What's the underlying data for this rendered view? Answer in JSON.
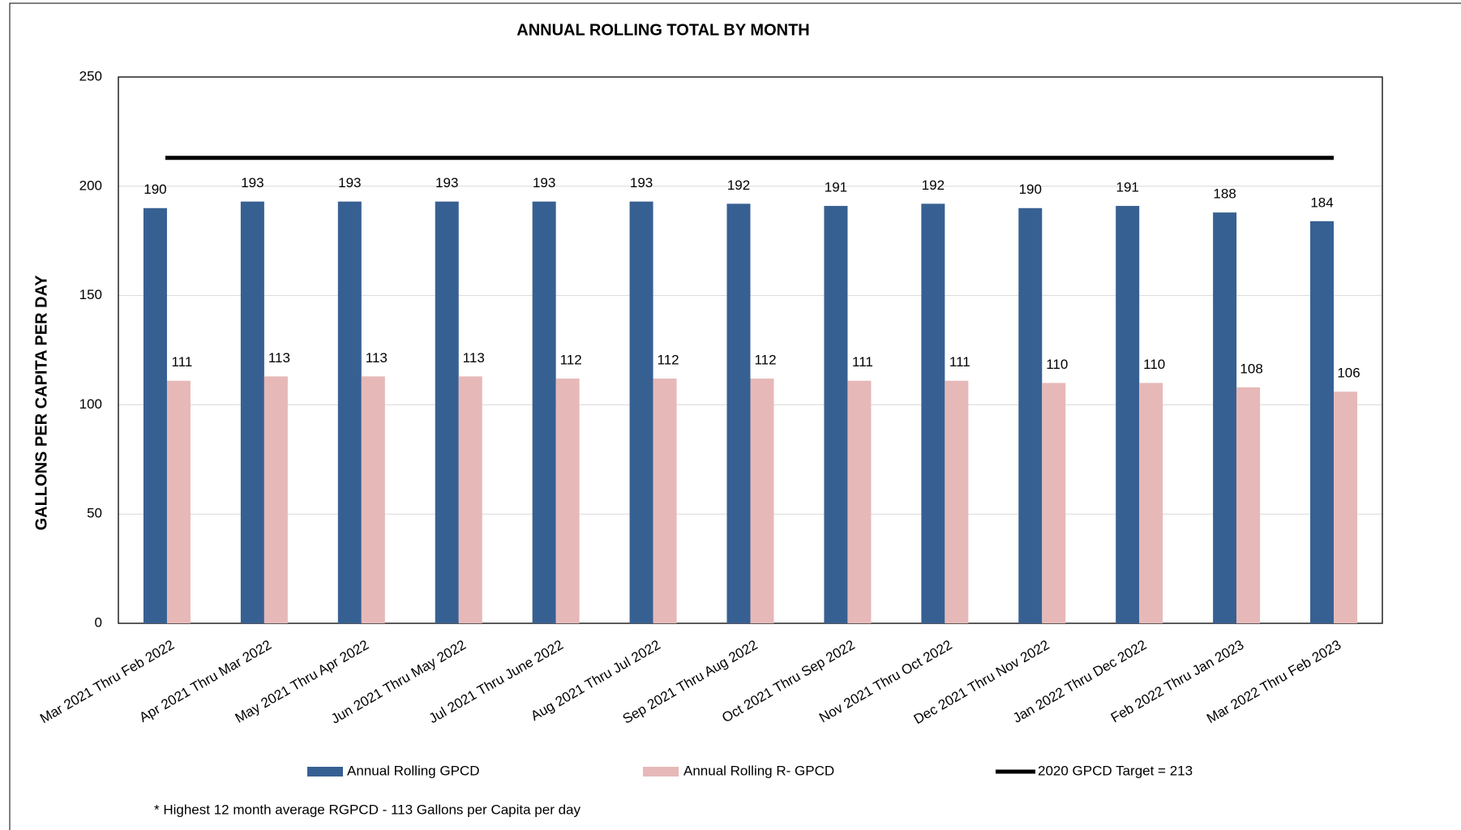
{
  "chart_data": {
    "type": "bar",
    "title": "ANNUAL  ROLLING TOTAL BY MONTH",
    "y_label": "GALLONS PER CAPITA PER DAY",
    "categories": [
      "Mar 2021 Thru Feb 2022",
      "Apr 2021 Thru Mar 2022",
      "May 2021 Thru Apr 2022",
      "Jun 2021 Thru May 2022",
      "Jul 2021 Thru June 2022",
      "Aug 2021 Thru Jul 2022",
      "Sep 2021 Thru Aug 2022",
      "Oct 2021 Thru Sep 2022",
      "Nov 2021 Thru Oct 2022",
      "Dec 2021 Thru Nov 2022",
      "Jan 2022 Thru Dec 2022",
      "Feb 2022 Thru Jan 2023",
      "Mar 2022 Thru Feb 2023"
    ],
    "series": [
      {
        "name": "Annual Rolling GPCD",
        "color": "#376092",
        "values": [
          190,
          193,
          193,
          193,
          193,
          193,
          192,
          191,
          192,
          190,
          191,
          188,
          184
        ]
      },
      {
        "name": "Annual Rolling R- GPCD",
        "color": "#e6b9b8",
        "values": [
          111,
          113,
          113,
          113,
          112,
          112,
          112,
          111,
          111,
          110,
          110,
          108,
          106
        ]
      }
    ],
    "target": {
      "name": "2020 GPCD Target = 213",
      "value": 213,
      "color": "#000000"
    },
    "ylim": [
      0,
      250
    ],
    "yticks": [
      0,
      50,
      100,
      150,
      200,
      250
    ],
    "grid": true,
    "note": "* Highest 12 month average RGPCD - 113 Gallons per Capita per day"
  }
}
